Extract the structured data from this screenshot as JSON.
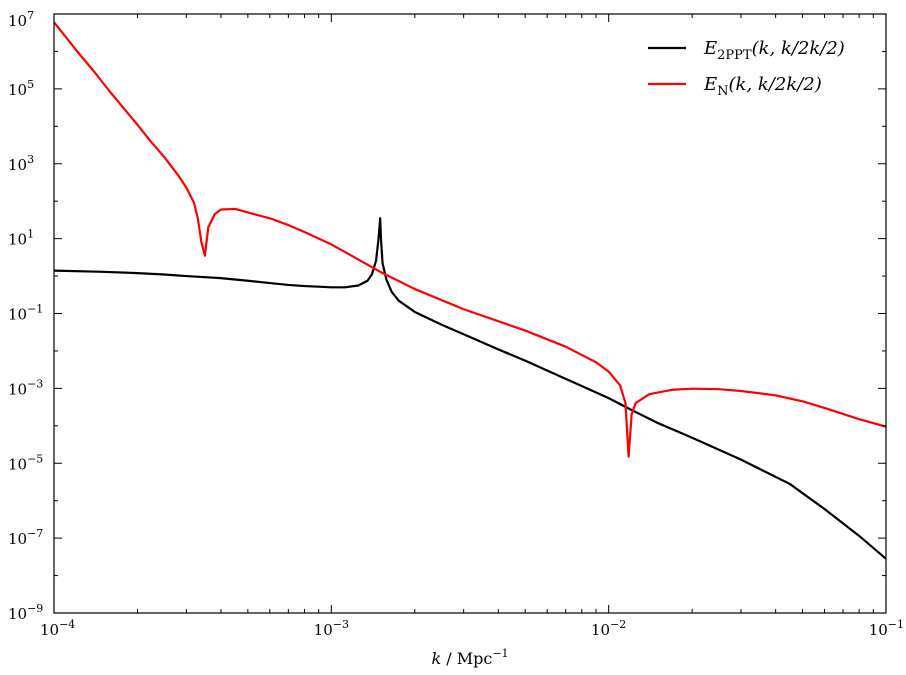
{
  "chart_data": {
    "type": "line",
    "title": "",
    "xscale": "log",
    "yscale": "log",
    "xlim": [
      0.0001,
      0.1
    ],
    "ylim": [
      1e-09,
      10000000.0
    ],
    "xlabel": {
      "var": "k",
      "sep": " / Mpc",
      "exp": "−1"
    },
    "ylabel": "",
    "grid": false,
    "legend_position": "top-right",
    "x_ticks": [
      {
        "value": 0.0001,
        "base": "10",
        "exp": "−4"
      },
      {
        "value": 0.001,
        "base": "10",
        "exp": "−3"
      },
      {
        "value": 0.01,
        "base": "10",
        "exp": "−2"
      },
      {
        "value": 0.1,
        "base": "10",
        "exp": "−1"
      }
    ],
    "y_ticks": [
      {
        "value": 1e-09,
        "base": "10",
        "exp": "−9"
      },
      {
        "value": 1e-07,
        "base": "10",
        "exp": "−7"
      },
      {
        "value": 1e-05,
        "base": "10",
        "exp": "−5"
      },
      {
        "value": 0.001,
        "base": "10",
        "exp": "−3"
      },
      {
        "value": 0.1,
        "base": "10",
        "exp": "−1"
      },
      {
        "value": 10.0,
        "base": "10",
        "exp": "1"
      },
      {
        "value": 1000.0,
        "base": "10",
        "exp": "3"
      },
      {
        "value": 100000.0,
        "base": "10",
        "exp": "5"
      },
      {
        "value": 10000000.0,
        "base": "10",
        "exp": "7"
      }
    ],
    "series": [
      {
        "sym": "E",
        "sub": "2PPT",
        "args": "(k, k/2k/2)",
        "color": "#000000",
        "points": [
          [
            0.0001,
            1.4
          ],
          [
            0.00015,
            1.3
          ],
          [
            0.0002,
            1.2
          ],
          [
            0.00025,
            1.1
          ],
          [
            0.0003,
            1.0
          ],
          [
            0.0004,
            0.88
          ],
          [
            0.0005,
            0.75
          ],
          [
            0.0006,
            0.65
          ],
          [
            0.0007,
            0.58
          ],
          [
            0.0008,
            0.54
          ],
          [
            0.0009,
            0.52
          ],
          [
            0.001,
            0.5
          ],
          [
            0.00112,
            0.5
          ],
          [
            0.00125,
            0.56
          ],
          [
            0.00135,
            0.75
          ],
          [
            0.0014,
            1.1
          ],
          [
            0.00145,
            2.6
          ],
          [
            0.00148,
            10
          ],
          [
            0.0015,
            35
          ],
          [
            0.00151,
            10
          ],
          [
            0.00153,
            2.2
          ],
          [
            0.00158,
            0.8
          ],
          [
            0.00165,
            0.38
          ],
          [
            0.00175,
            0.22
          ],
          [
            0.002,
            0.11
          ],
          [
            0.0025,
            0.05
          ],
          [
            0.003,
            0.028
          ],
          [
            0.004,
            0.011
          ],
          [
            0.005,
            0.0055
          ],
          [
            0.007,
            0.0018
          ],
          [
            0.01,
            0.00055
          ],
          [
            0.0118,
            0.00029
          ],
          [
            0.015,
            0.00012
          ],
          [
            0.02,
            4.8e-05
          ],
          [
            0.03,
            1.25e-05
          ],
          [
            0.045,
            2.8e-06
          ],
          [
            0.06,
            6e-07
          ],
          [
            0.08,
            1.15e-07
          ],
          [
            0.1,
            2.8e-08
          ]
        ]
      },
      {
        "sym": "E",
        "sub": "N",
        "args": "(k, k/2k/2)",
        "color": "#ff0000",
        "points": [
          [
            0.0001,
            6000000.0
          ],
          [
            0.00011,
            2500000.0
          ],
          [
            0.00012,
            1100000.0
          ],
          [
            0.00014,
            280000.0
          ],
          [
            0.00016,
            80000.0
          ],
          [
            0.00018,
            28000.0
          ],
          [
            0.0002,
            11000.0
          ],
          [
            0.00022,
            4500
          ],
          [
            0.00025,
            1500
          ],
          [
            0.00028,
            500
          ],
          [
            0.0003,
            230
          ],
          [
            0.00032,
            90
          ],
          [
            0.00033,
            35
          ],
          [
            0.00034,
            8
          ],
          [
            0.00035,
            3.5
          ],
          [
            0.00036,
            20
          ],
          [
            0.00038,
            45
          ],
          [
            0.0004,
            60
          ],
          [
            0.00045,
            62
          ],
          [
            0.0005,
            50
          ],
          [
            0.0006,
            35
          ],
          [
            0.0007,
            23
          ],
          [
            0.0008,
            15
          ],
          [
            0.001,
            7
          ],
          [
            0.0012,
            3.3
          ],
          [
            0.0015,
            1.3
          ],
          [
            0.002,
            0.45
          ],
          [
            0.003,
            0.13
          ],
          [
            0.005,
            0.035
          ],
          [
            0.007,
            0.013
          ],
          [
            0.009,
            0.005
          ],
          [
            0.01,
            0.0028
          ],
          [
            0.011,
            0.0012
          ],
          [
            0.0115,
            0.0004
          ],
          [
            0.0118,
            1.5e-05
          ],
          [
            0.0121,
            0.0002
          ],
          [
            0.0125,
            0.0004
          ],
          [
            0.014,
            0.0007
          ],
          [
            0.017,
            0.00092
          ],
          [
            0.02,
            0.00098
          ],
          [
            0.025,
            0.00095
          ],
          [
            0.03,
            0.00085
          ],
          [
            0.04,
            0.00065
          ],
          [
            0.05,
            0.00045
          ],
          [
            0.06,
            0.0003
          ],
          [
            0.08,
            0.00015
          ],
          [
            0.1,
            9.5e-05
          ]
        ]
      }
    ]
  }
}
